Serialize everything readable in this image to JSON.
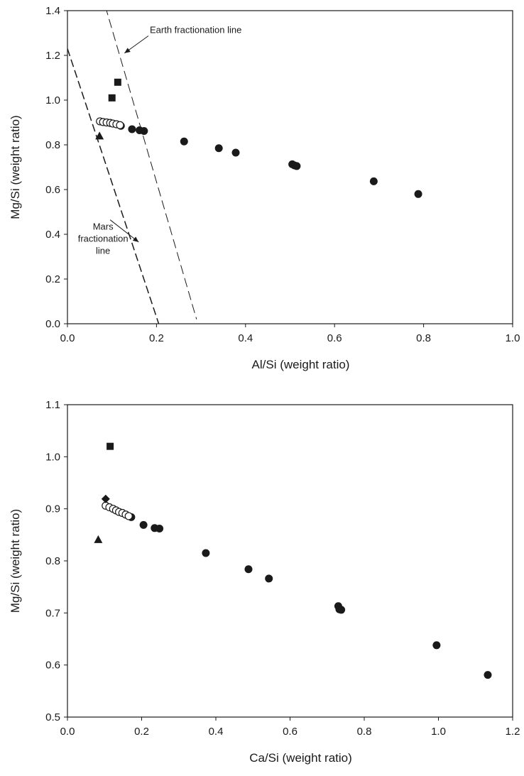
{
  "chart_data": [
    {
      "type": "scatter",
      "xlabel": "Al/Si (weight ratio)",
      "ylabel": "Mg/Si (weight ratio)",
      "xlim": [
        0.0,
        1.0
      ],
      "ylim": [
        0.0,
        1.4
      ],
      "xticks": [
        "0.0",
        "0.2",
        "0.4",
        "0.6",
        "0.8",
        "1.0"
      ],
      "yticks": [
        "0.0",
        "0.2",
        "0.4",
        "0.6",
        "0.8",
        "1.0",
        "1.2",
        "1.4"
      ],
      "grid": false,
      "series": [
        {
          "marker": "filled-circle",
          "color": "#1a1a1a",
          "points": [
            {
              "x": 0.12,
              "y": 0.885
            },
            {
              "x": 0.145,
              "y": 0.87
            },
            {
              "x": 0.162,
              "y": 0.865
            },
            {
              "x": 0.172,
              "y": 0.862
            },
            {
              "x": 0.262,
              "y": 0.815
            },
            {
              "x": 0.34,
              "y": 0.785
            },
            {
              "x": 0.378,
              "y": 0.765
            },
            {
              "x": 0.505,
              "y": 0.713
            },
            {
              "x": 0.51,
              "y": 0.708
            },
            {
              "x": 0.515,
              "y": 0.705
            },
            {
              "x": 0.688,
              "y": 0.637
            },
            {
              "x": 0.788,
              "y": 0.58
            }
          ]
        },
        {
          "marker": "open-circle",
          "color": "#1a1a1a",
          "points": [
            {
              "x": 0.073,
              "y": 0.905
            },
            {
              "x": 0.08,
              "y": 0.902
            },
            {
              "x": 0.088,
              "y": 0.9
            },
            {
              "x": 0.096,
              "y": 0.898
            },
            {
              "x": 0.102,
              "y": 0.895
            },
            {
              "x": 0.11,
              "y": 0.892
            },
            {
              "x": 0.118,
              "y": 0.888
            }
          ]
        },
        {
          "marker": "filled-square",
          "color": "#1a1a1a",
          "points": [
            {
              "x": 0.113,
              "y": 1.08
            },
            {
              "x": 0.1,
              "y": 1.01
            }
          ]
        },
        {
          "marker": "filled-triangle",
          "color": "#1a1a1a",
          "points": [
            {
              "x": 0.072,
              "y": 0.84
            }
          ]
        }
      ],
      "lines": [
        {
          "style": "dashed",
          "from": {
            "x": 0.085,
            "y": 1.42
          },
          "to": {
            "x": 0.29,
            "y": 0.02
          }
        },
        {
          "style": "dashed-bold",
          "from": {
            "x": 0.0,
            "y": 1.23
          },
          "to": {
            "x": 0.205,
            "y": 0.0
          }
        }
      ],
      "annotations": [
        {
          "text_lines": [
            "Earth fractionation line"
          ],
          "x": 0.185,
          "y": 1.3,
          "arrow_to": {
            "x": 0.128,
            "y": 1.21
          }
        },
        {
          "text_lines": [
            "Mars",
            "fractionation",
            "line"
          ],
          "x": 0.08,
          "y": 0.42,
          "arrow_to": {
            "x": 0.16,
            "y": 0.365
          }
        }
      ]
    },
    {
      "type": "scatter",
      "xlabel": "Ca/Si (weight ratio)",
      "ylabel": "Mg/Si (weight ratio)",
      "xlim": [
        0.0,
        1.2
      ],
      "ylim": [
        0.5,
        1.1
      ],
      "xticks": [
        "0.0",
        "0.2",
        "0.4",
        "0.6",
        "0.8",
        "1.0",
        "1.2"
      ],
      "yticks": [
        "0.5",
        "0.6",
        "0.7",
        "0.8",
        "0.9",
        "1.0",
        "1.1"
      ],
      "grid": false,
      "series": [
        {
          "marker": "filled-circle",
          "color": "#1a1a1a",
          "points": [
            {
              "x": 0.172,
              "y": 0.884
            },
            {
              "x": 0.205,
              "y": 0.869
            },
            {
              "x": 0.235,
              "y": 0.863
            },
            {
              "x": 0.248,
              "y": 0.862
            },
            {
              "x": 0.373,
              "y": 0.815
            },
            {
              "x": 0.488,
              "y": 0.784
            },
            {
              "x": 0.543,
              "y": 0.766
            },
            {
              "x": 0.73,
              "y": 0.713
            },
            {
              "x": 0.733,
              "y": 0.707
            },
            {
              "x": 0.738,
              "y": 0.706
            },
            {
              "x": 0.995,
              "y": 0.638
            },
            {
              "x": 1.133,
              "y": 0.581
            }
          ]
        },
        {
          "marker": "open-circle",
          "color": "#1a1a1a",
          "points": [
            {
              "x": 0.103,
              "y": 0.906
            },
            {
              "x": 0.113,
              "y": 0.903
            },
            {
              "x": 0.123,
              "y": 0.9
            },
            {
              "x": 0.131,
              "y": 0.897
            },
            {
              "x": 0.139,
              "y": 0.894
            },
            {
              "x": 0.148,
              "y": 0.892
            },
            {
              "x": 0.157,
              "y": 0.889
            },
            {
              "x": 0.165,
              "y": 0.886
            }
          ]
        },
        {
          "marker": "filled-square",
          "color": "#1a1a1a",
          "points": [
            {
              "x": 0.115,
              "y": 1.02
            }
          ]
        },
        {
          "marker": "filled-diamond",
          "color": "#1a1a1a",
          "points": [
            {
              "x": 0.103,
              "y": 0.919
            }
          ]
        },
        {
          "marker": "filled-triangle",
          "color": "#1a1a1a",
          "points": [
            {
              "x": 0.083,
              "y": 0.841
            }
          ]
        }
      ],
      "lines": [],
      "annotations": []
    }
  ]
}
